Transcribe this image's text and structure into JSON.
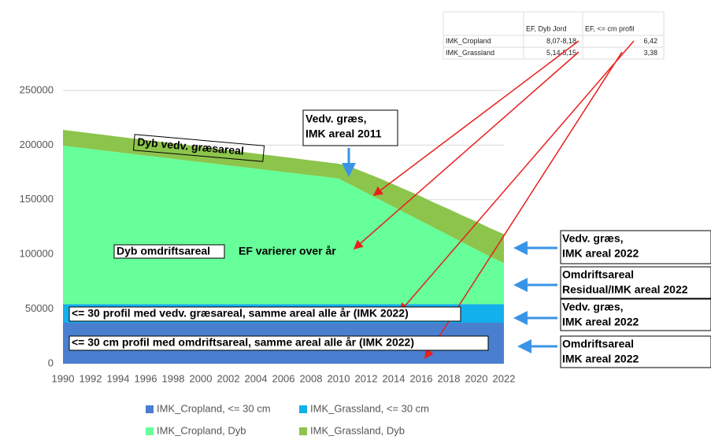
{
  "chart_data": {
    "type": "stacked_area",
    "x": [
      1990,
      1991,
      1992,
      1993,
      1994,
      1995,
      1996,
      1997,
      1998,
      1999,
      2000,
      2001,
      2002,
      2003,
      2004,
      2005,
      2006,
      2007,
      2008,
      2009,
      2010,
      2011,
      2012,
      2013,
      2014,
      2015,
      2016,
      2017,
      2018,
      2019,
      2020,
      2021,
      2022
    ],
    "xticks": [
      1990,
      1992,
      1994,
      1996,
      1998,
      2000,
      2002,
      2004,
      2006,
      2008,
      2010,
      2012,
      2014,
      2016,
      2018,
      2020,
      2022
    ],
    "xlim": [
      1990,
      2022
    ],
    "ylim": [
      0,
      250000
    ],
    "yticks": [
      0,
      50000,
      100000,
      150000,
      200000,
      250000
    ],
    "grid": true,
    "series": [
      {
        "name": "IMK_Cropland, <= 30 cm",
        "color": "#4a7fd0",
        "values": [
          37500,
          37500,
          37500,
          37500,
          37500,
          37500,
          37500,
          37500,
          37500,
          37500,
          37500,
          37500,
          37500,
          37500,
          37500,
          37500,
          37500,
          37500,
          37500,
          37500,
          37500,
          37500,
          37500,
          37500,
          37500,
          37500,
          37500,
          37500,
          37500,
          37500,
          37500,
          37500,
          37500
        ]
      },
      {
        "name": "IMK_Grassland, <= 30 cm",
        "color": "#12b0ec",
        "values": [
          17000,
          17000,
          17000,
          17000,
          17000,
          17000,
          17000,
          17000,
          17000,
          17000,
          17000,
          17000,
          17000,
          17000,
          17000,
          17000,
          17000,
          17000,
          17000,
          17000,
          17000,
          17000,
          17000,
          17000,
          17000,
          17000,
          17000,
          17000,
          17000,
          17000,
          17000,
          17000,
          17000
        ]
      },
      {
        "name": "IMK_Cropland, Dyb",
        "color": "#66ff99",
        "values": [
          145000,
          143500,
          142000,
          140500,
          139000,
          137500,
          136000,
          134500,
          133000,
          131500,
          130000,
          128500,
          127000,
          125500,
          124000,
          122500,
          121000,
          119500,
          118000,
          116500,
          115000,
          108500,
          102000,
          95500,
          89000,
          82500,
          76000,
          69500,
          63000,
          56500,
          50000,
          43500,
          37500
        ]
      },
      {
        "name": "IMK_Grassland, Dyb",
        "color": "#8cc44c",
        "values": [
          14500,
          14450,
          14400,
          14350,
          14300,
          14250,
          14200,
          14150,
          14100,
          14050,
          14000,
          13950,
          13900,
          13850,
          13800,
          13750,
          13700,
          13650,
          13600,
          13550,
          13500,
          16500,
          18000,
          19500,
          20500,
          21500,
          22500,
          23000,
          24000,
          24500,
          25500,
          26000,
          26500
        ]
      }
    ],
    "table": {
      "header": [
        "EF, Dyb Jord",
        "EF, <= cm profil"
      ],
      "rows": [
        [
          "IMK_Cropland",
          "8,07-8,18",
          "6,42"
        ],
        [
          "IMK_Grassland",
          "5,14-5,15",
          "3,38"
        ]
      ]
    },
    "annotations": [
      {
        "lines": [
          "Dyb vedv. græsareal"
        ]
      },
      {
        "lines": [
          "Vedv. græs,",
          "IMK areal 2011"
        ]
      },
      {
        "lines": [
          "Dyb omdriftsareal"
        ]
      },
      {
        "lines": [
          "EF varierer over år"
        ]
      },
      {
        "lines": [
          "<= 30 profil med vedv. græsareal, samme areal alle år (IMK 2022)"
        ]
      },
      {
        "lines": [
          "<= 30 cm profil med omdriftsareal, samme areal alle år (IMK 2022)"
        ]
      },
      {
        "lines": [
          "Vedv. græs,",
          "IMK areal 2022"
        ]
      },
      {
        "lines": [
          "Omdriftsareal",
          "Residual/IMK areal 2022"
        ]
      },
      {
        "lines": [
          "Vedv. græs,",
          "IMK areal 2022"
        ]
      },
      {
        "lines": [
          "Omdriftsareal",
          "IMK areal 2022"
        ]
      }
    ]
  }
}
